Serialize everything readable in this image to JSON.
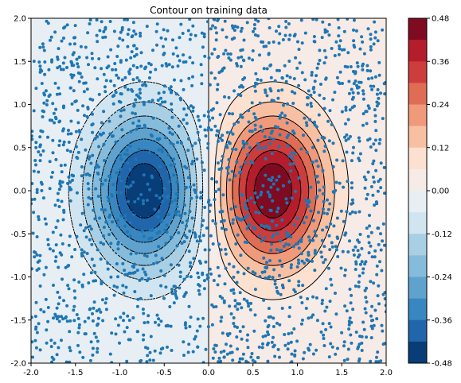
{
  "chart_data": {
    "type": "contour",
    "title": "Contour on training data",
    "xlabel": "",
    "ylabel": "",
    "xlim": [
      -2.0,
      2.0
    ],
    "ylim": [
      -2.0,
      2.0
    ],
    "x_ticks": [
      "-2.0",
      "-1.5",
      "-1.0",
      "-0.5",
      "0.0",
      "0.5",
      "1.0",
      "1.5",
      "2.0"
    ],
    "y_ticks": [
      "2.0",
      "1.5",
      "1.0",
      "0.5",
      "0.0",
      "-0.5",
      "-1.0",
      "-1.5",
      "-2.0"
    ],
    "grid": false,
    "colormap": "RdBu_r",
    "point_color": "#1f77b4",
    "contour_line_color": "#000000",
    "scatter_point_count": 2000,
    "peaks": [
      {
        "x": -0.72,
        "y": 0.0,
        "value": -0.48,
        "sign": "negative"
      },
      {
        "x": 0.72,
        "y": 0.0,
        "value": 0.48,
        "sign": "positive"
      }
    ],
    "contour_levels": [
      -0.48,
      -0.42,
      -0.36,
      -0.3,
      -0.24,
      -0.18,
      -0.12,
      -0.06,
      0.0,
      0.06,
      0.12,
      0.18,
      0.24,
      0.3,
      0.36,
      0.42,
      0.48
    ],
    "colorbar": {
      "ticks": [
        "0.48",
        "0.36",
        "0.24",
        "0.12",
        "0.00",
        "-0.12",
        "-0.24",
        "-0.36",
        "-0.48"
      ],
      "bands": [
        "#7f0b22",
        "#b31d2c",
        "#cc3d3d",
        "#df6d55",
        "#ef9a7b",
        "#f8c0a3",
        "#fce0d0",
        "#f6ebe6",
        "#e7eff5",
        "#d1e5f0",
        "#a9cfe5",
        "#85bcdb",
        "#5ea2cd",
        "#3987c0",
        "#2165ab",
        "#083d78"
      ]
    }
  }
}
